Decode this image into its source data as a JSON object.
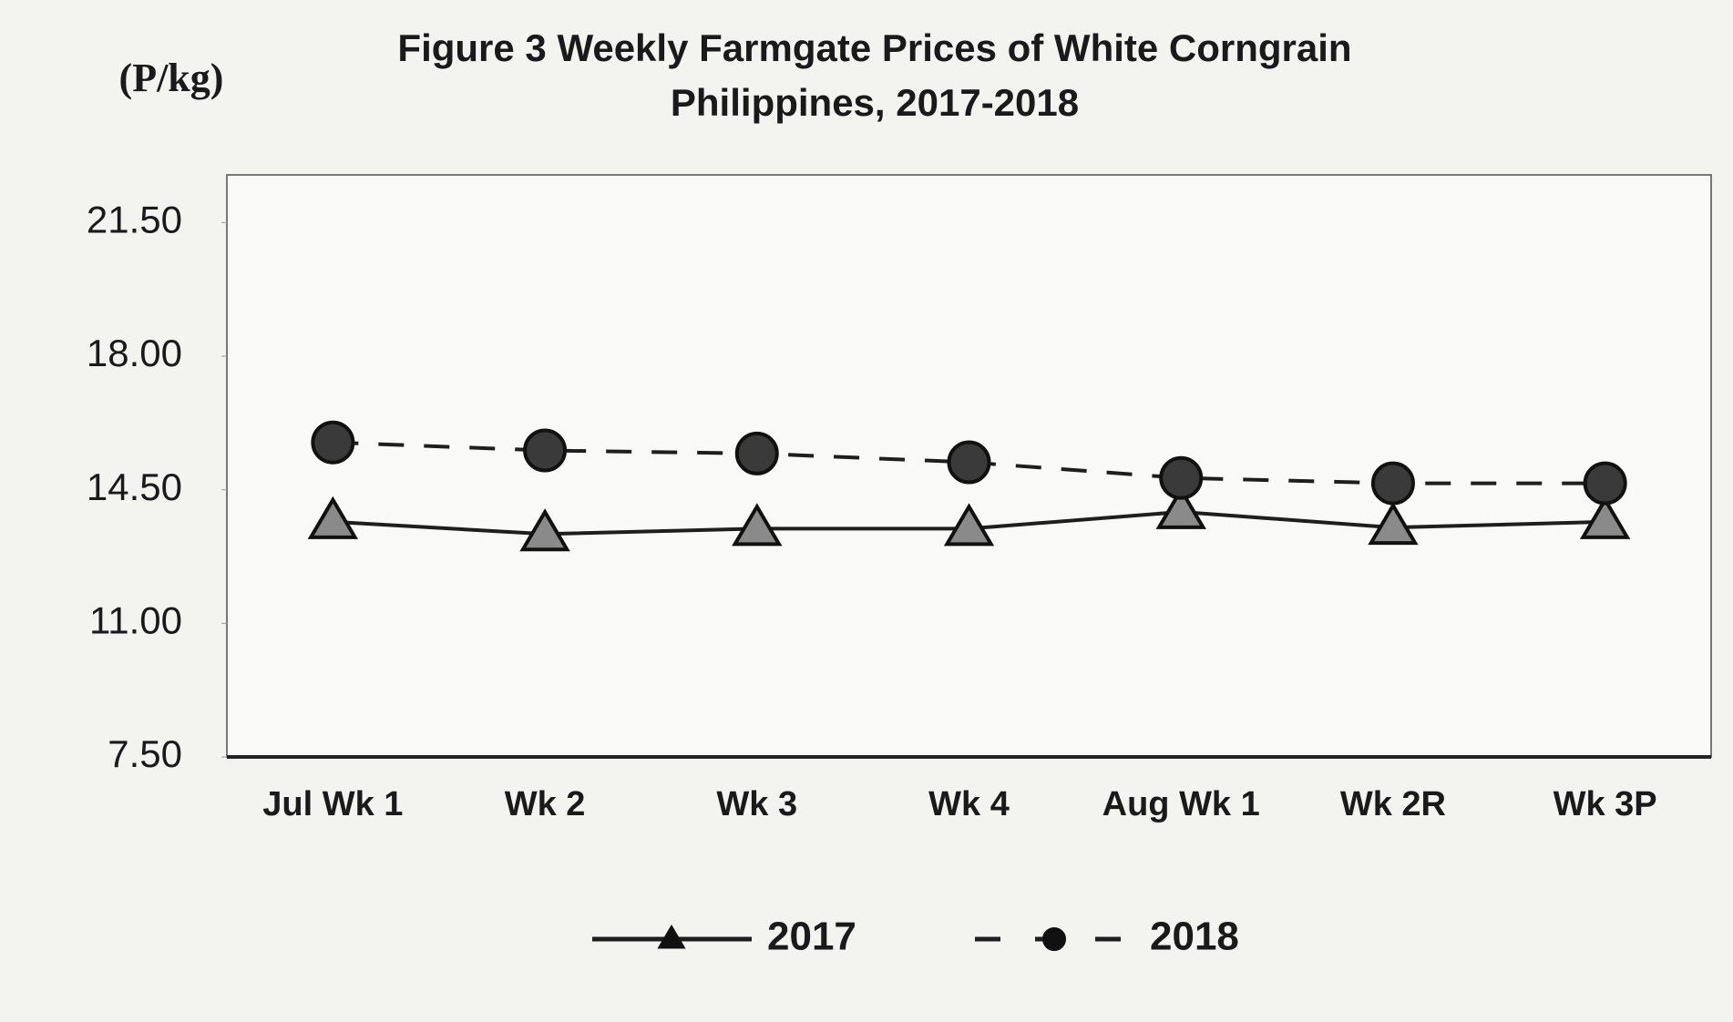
{
  "chart_data": {
    "type": "line",
    "title": "Figure 3  Weekly Farmgate Prices of White Corngrain",
    "subtitle": "Philippines, 2017-2018",
    "y_label": "(P/kg)",
    "categories": [
      "Jul Wk 1",
      "Wk 2",
      "Wk 3",
      "Wk 4",
      "Aug Wk 1",
      "Wk 2R",
      "Wk 3P"
    ],
    "series": [
      {
        "name": "2017",
        "color": "#1e1e1e",
        "marker_color": "#8a8a8a",
        "marker": "triangle",
        "linestyle": "solid",
        "values": [
          13.66,
          13.34,
          13.48,
          13.48,
          13.92,
          13.51,
          13.66
        ]
      },
      {
        "name": "2018",
        "color": "#1e1e1e",
        "marker_color": "#3a3a3a",
        "marker": "circle",
        "linestyle": "dashed",
        "values": [
          15.74,
          15.53,
          15.45,
          15.22,
          14.81,
          14.67,
          14.67
        ]
      }
    ],
    "ylim": [
      7.5,
      22.75
    ],
    "yticks": [
      {
        "value": 7.5,
        "label": "7.50"
      },
      {
        "value": 11,
        "label": "11.00"
      },
      {
        "value": 14.5,
        "label": "14.50"
      },
      {
        "value": 18,
        "label": "18.00"
      },
      {
        "value": 21.5,
        "label": "21.50"
      }
    ],
    "grid": false,
    "legend": "bottom"
  }
}
